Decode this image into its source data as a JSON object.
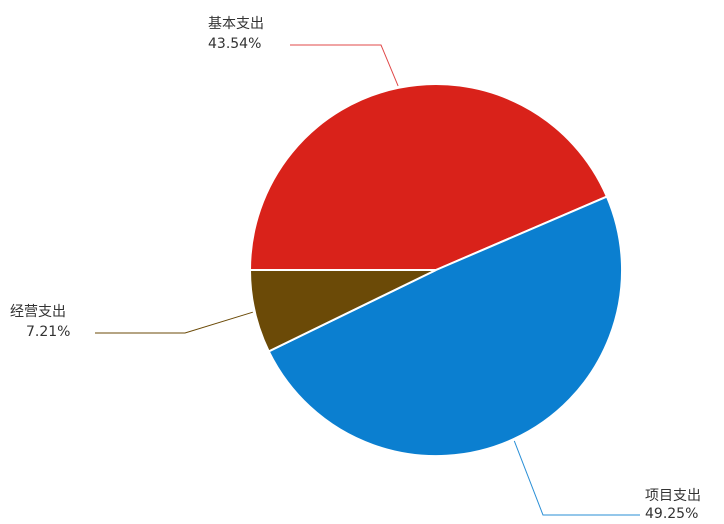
{
  "chart_data": {
    "type": "pie",
    "title": "",
    "slices": [
      {
        "name": "基本支出",
        "value": 43.54,
        "percent_label": "43.54%",
        "color": "#d9221a",
        "leader_color": "#e04848"
      },
      {
        "name": "项目支出",
        "value": 49.25,
        "percent_label": "49.25%",
        "color": "#0b7fd0",
        "leader_color": "#2a8fd6"
      },
      {
        "name": "经营支出",
        "value": 7.21,
        "percent_label": "7.21%",
        "color": "#6b4a07",
        "leader_color": "#6b4a07"
      }
    ],
    "start_angle_deg": 180,
    "direction": "clockwise",
    "legend": "none"
  }
}
